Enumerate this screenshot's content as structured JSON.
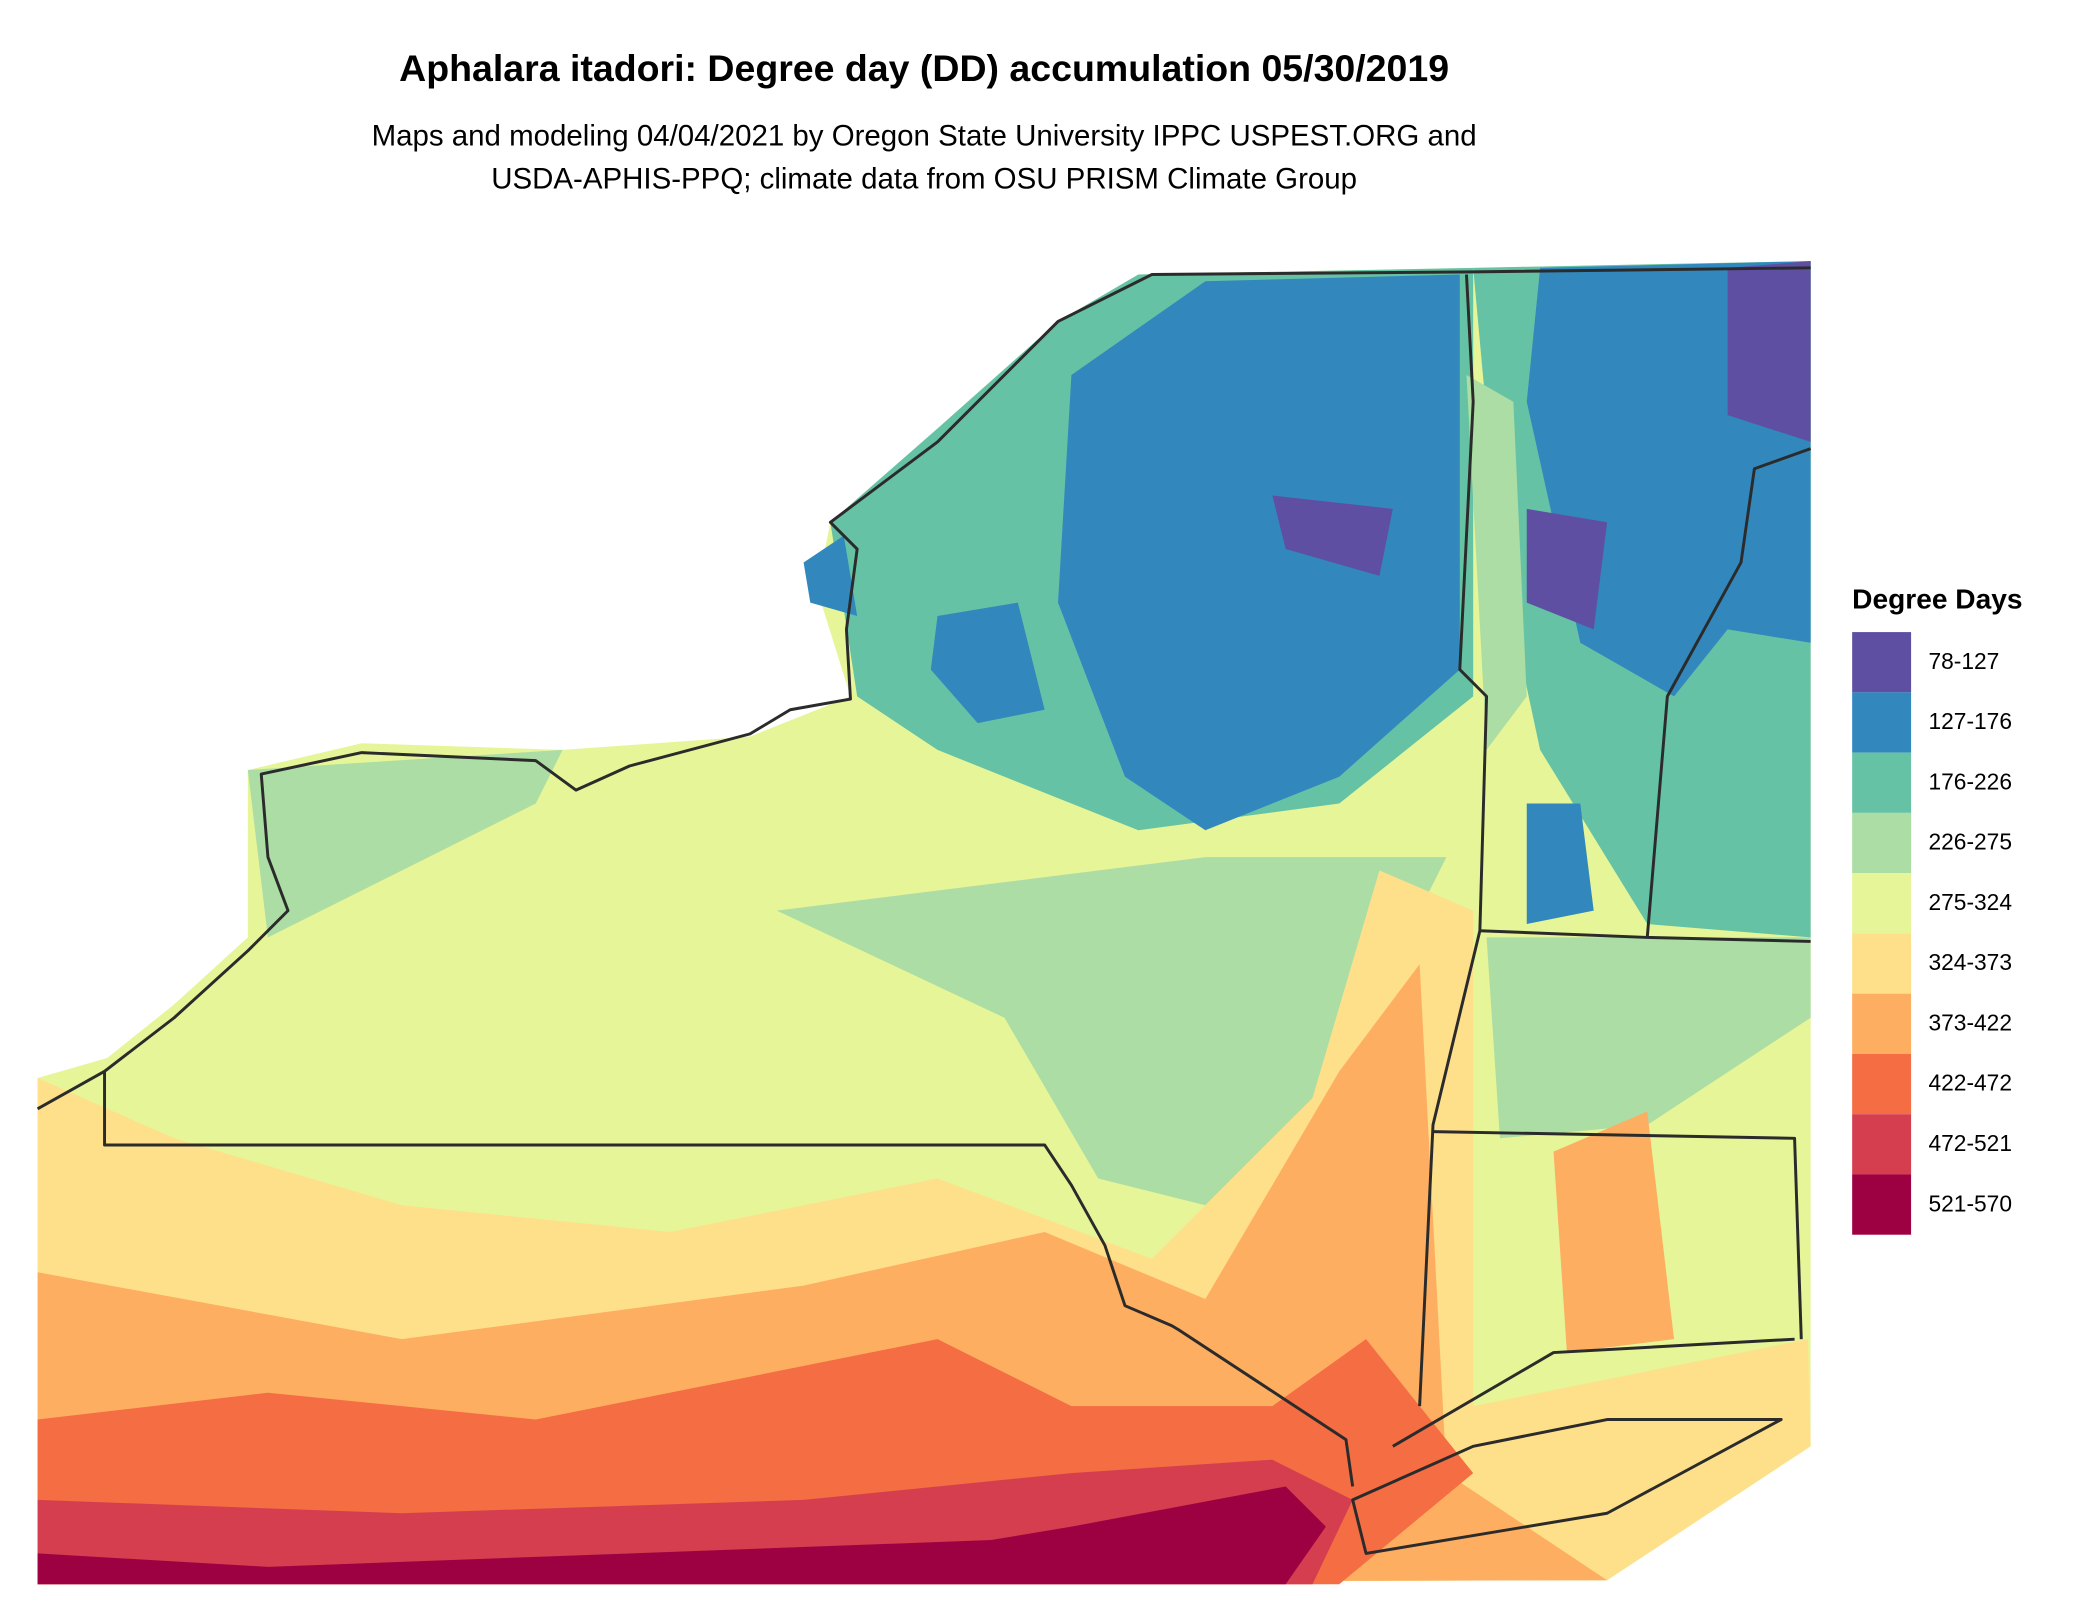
{
  "title": "Aphalara itadori: Degree day (DD) accumulation 05/30/2019",
  "subtitle": [
    "Maps and modeling 04/04/2021 by Oregon State University IPPC USPEST.ORG and",
    "USDA-APHIS-PPQ; climate data from OSU PRISM Climate Group"
  ],
  "legend": {
    "title": "Degree Days",
    "items": [
      {
        "label": "78-127",
        "color": "#5E4FA2"
      },
      {
        "label": "127-176",
        "color": "#3288BD"
      },
      {
        "label": "176-226",
        "color": "#66C2A5"
      },
      {
        "label": "226-275",
        "color": "#ABDDA4"
      },
      {
        "label": "275-324",
        "color": "#E6F598"
      },
      {
        "label": "324-373",
        "color": "#FEE08B"
      },
      {
        "label": "373-422",
        "color": "#FDAE61"
      },
      {
        "label": "422-472",
        "color": "#F46D43"
      },
      {
        "label": "472-521",
        "color": "#D53E4F"
      },
      {
        "label": "521-570",
        "color": "#9E0142"
      }
    ]
  }
}
